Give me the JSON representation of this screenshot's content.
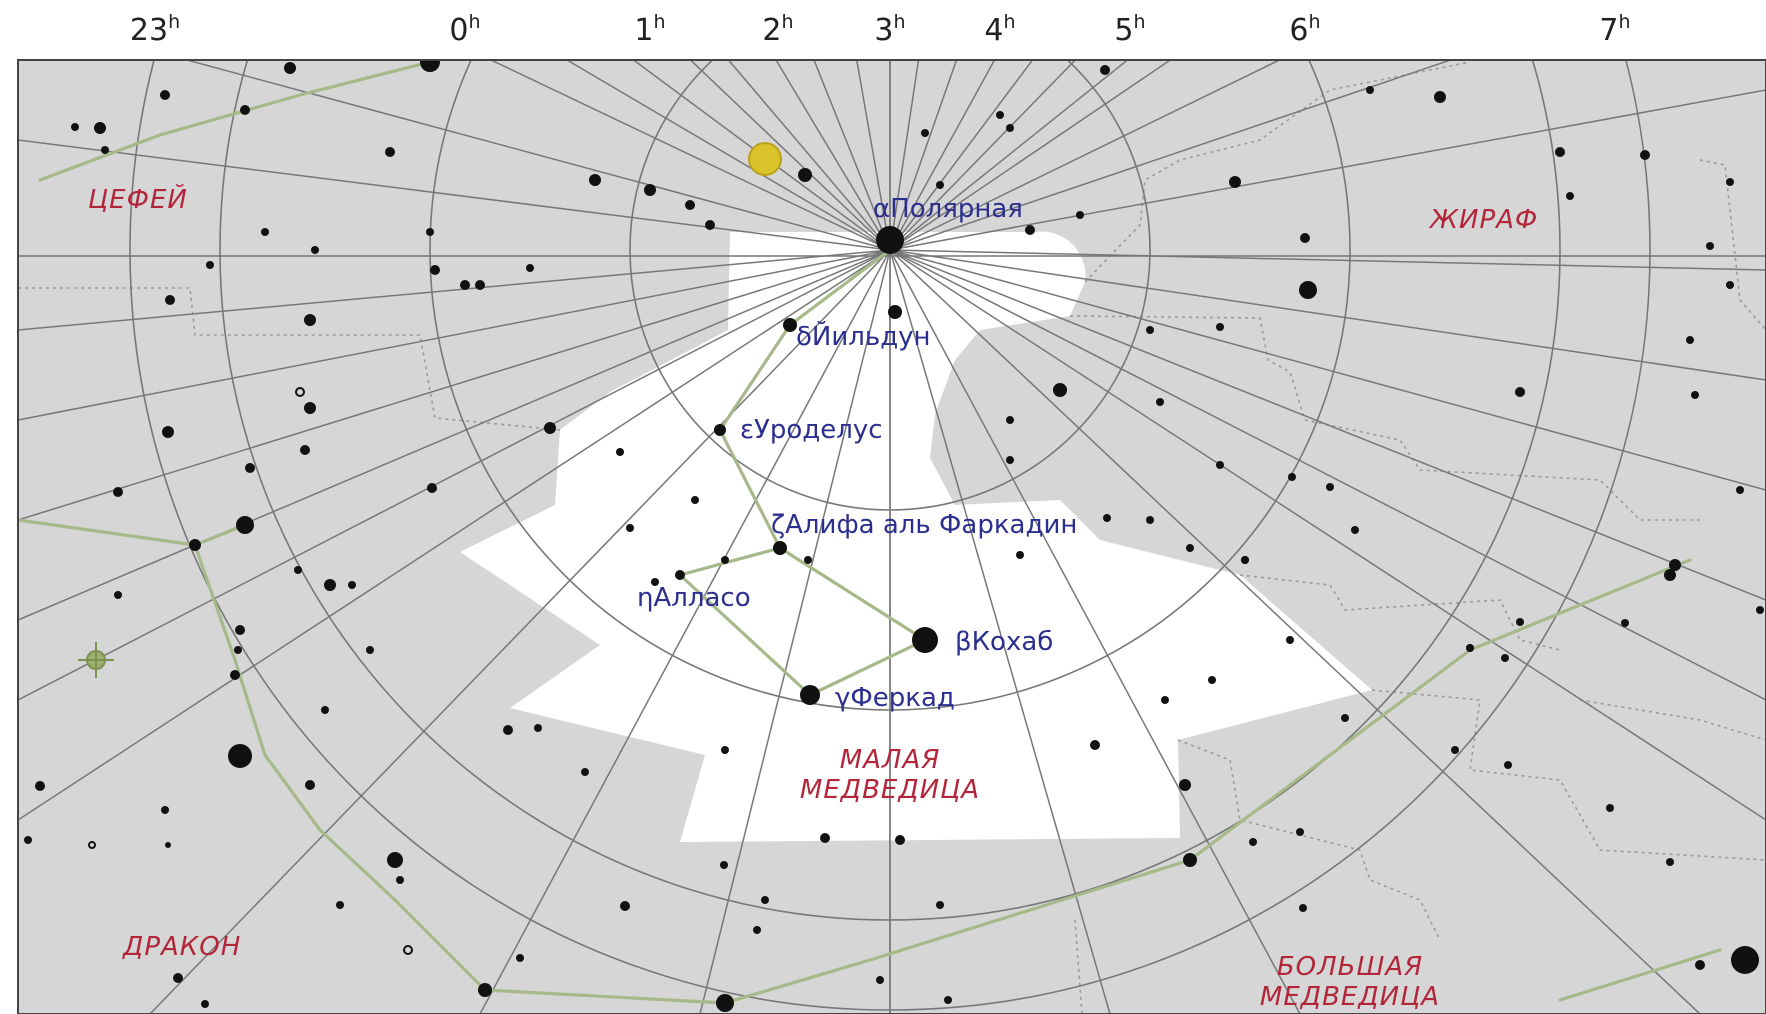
{
  "colors": {
    "sky": "#d6d6d6",
    "highlight": "#ffffff",
    "grid": "#777777",
    "boundary": "#9a9a9a",
    "figure": "#a7b88a",
    "star": "#111111",
    "star_name": "#2b2f8f",
    "constellation_name": "#b3263a",
    "planet": "#d9c22a"
  },
  "ra_labels": [
    {
      "h": "23",
      "sup": "h"
    },
    {
      "h": "0",
      "sup": "h"
    },
    {
      "h": "1",
      "sup": "h"
    },
    {
      "h": "2",
      "sup": "h"
    },
    {
      "h": "3",
      "sup": "h"
    },
    {
      "h": "4",
      "sup": "h"
    },
    {
      "h": "5",
      "sup": "h"
    },
    {
      "h": "6",
      "sup": "h"
    },
    {
      "h": "7",
      "sup": "h"
    }
  ],
  "star_labels": [
    {
      "greek": "α",
      "name": "Полярная"
    },
    {
      "greek": "δ",
      "name": "Йильдун"
    },
    {
      "greek": "ε",
      "name": "Уроделус"
    },
    {
      "greek": "ζ",
      "name": "Алифа аль Фаркадин"
    },
    {
      "greek": "η",
      "name": "Алласо"
    },
    {
      "greek": "β",
      "name": "Кохаб"
    },
    {
      "greek": "γ",
      "name": "Феркад"
    }
  ],
  "constellations": [
    {
      "lines": [
        "ЦЕФЕЙ"
      ]
    },
    {
      "lines": [
        "ЖИРАФ"
      ]
    },
    {
      "lines": [
        "МАЛАЯ",
        "МЕДВЕДИЦА"
      ]
    },
    {
      "lines": [
        "ДРАКОН"
      ]
    },
    {
      "lines": [
        "БОЛЬШАЯ",
        "МЕДВЕДИЦА"
      ]
    }
  ]
}
